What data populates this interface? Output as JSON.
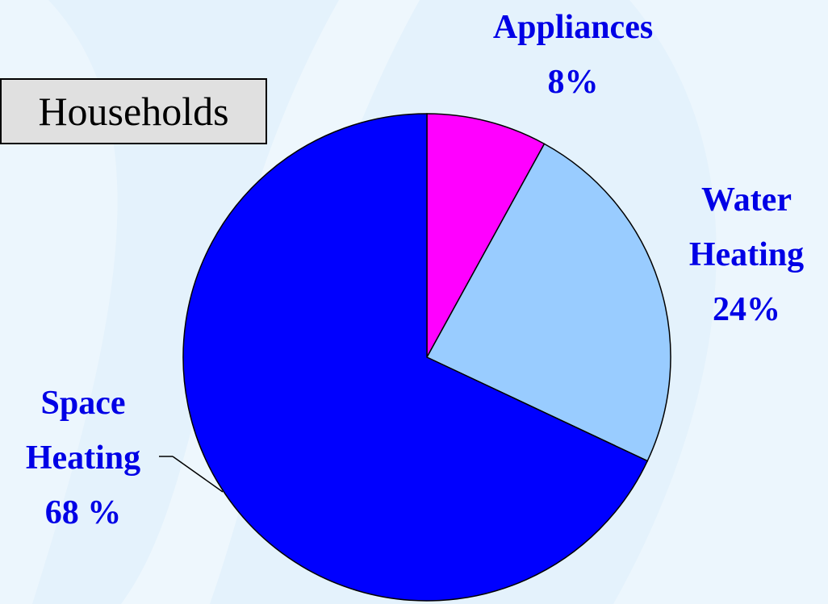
{
  "chart_data": {
    "type": "pie",
    "title": "Households",
    "categories": [
      "Appliances",
      "Water Heating",
      "Space Heating"
    ],
    "values": [
      8,
      24,
      68
    ],
    "value_labels": [
      "8%",
      "24%",
      "68 %"
    ],
    "colors": [
      "#ff00ff",
      "#99ccff",
      "#0000ff"
    ]
  }
}
